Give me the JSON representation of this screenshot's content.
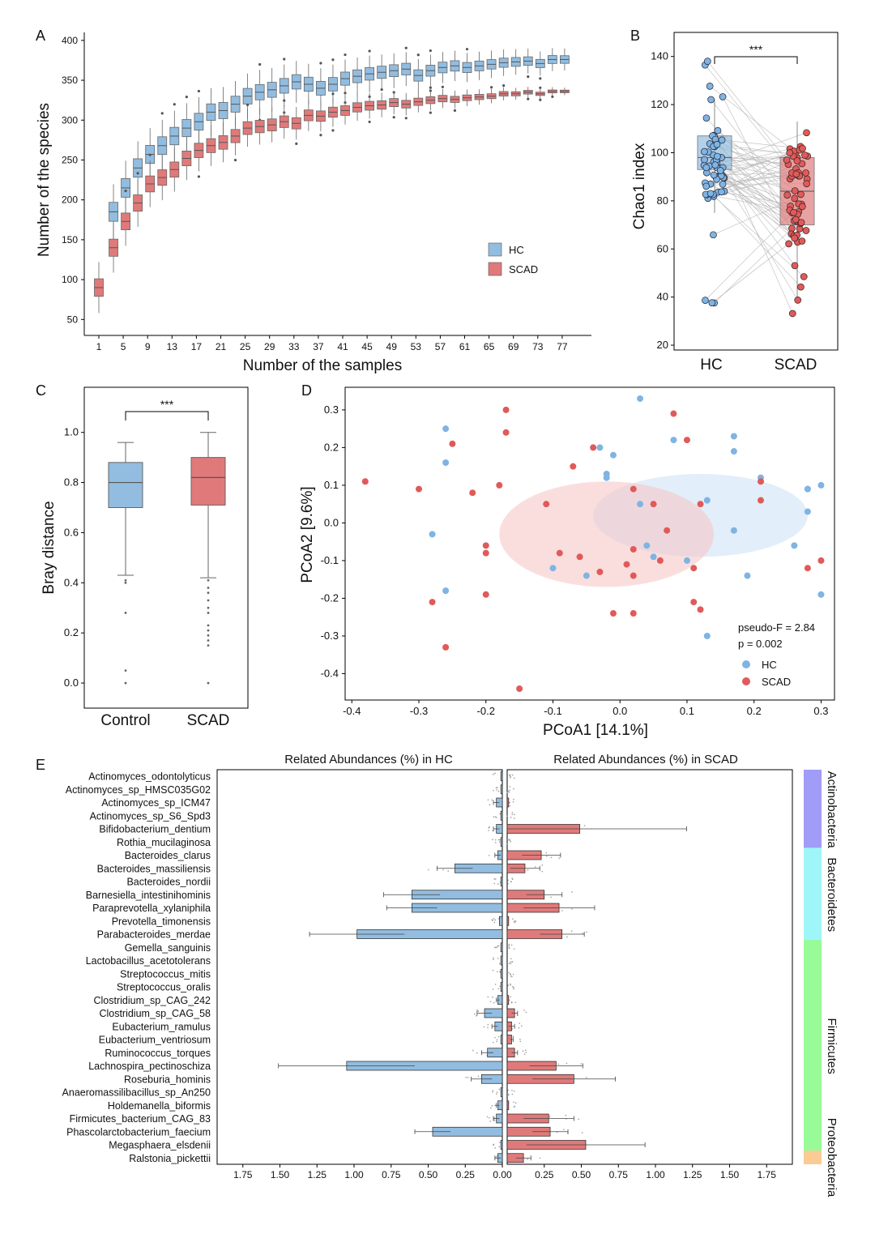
{
  "colors": {
    "hc": "#92bde0",
    "scad": "#e07a7a",
    "hc_dot": "#7fb4e3",
    "scad_dot": "#e05a5a",
    "hc_label": "#2e8fe0",
    "scad_label": "#e02a2a",
    "actino": "#a09cf7",
    "bactero": "#9ff6f9",
    "firmi": "#98fb98",
    "proteo": "#fbcb95"
  },
  "chart_data": [
    {
      "panel": "A",
      "type": "box",
      "xlabel": "Number of the samples",
      "ylabel": "Number of the species",
      "ylim": [
        30,
        410
      ],
      "yticks": [
        50,
        100,
        150,
        200,
        250,
        300,
        350,
        400
      ],
      "xticks": [
        1,
        5,
        9,
        13,
        17,
        21,
        25,
        29,
        33,
        37,
        41,
        45,
        49,
        53,
        57,
        61,
        65,
        69,
        73,
        77
      ],
      "legend": [
        "HC",
        "SCAD"
      ],
      "hc_medians": [
        null,
        185,
        215,
        240,
        257,
        268,
        280,
        290,
        298,
        310,
        312,
        320,
        330,
        335,
        338,
        343,
        348,
        345,
        340,
        345,
        352,
        355,
        358,
        360,
        362,
        364,
        356,
        362,
        366,
        368,
        366,
        368,
        370,
        372,
        373,
        374,
        371,
        376,
        376
      ],
      "scad_medians": [
        90,
        140,
        173,
        196,
        220,
        228,
        238,
        252,
        262,
        268,
        272,
        280,
        290,
        292,
        294,
        298,
        296,
        306,
        305,
        310,
        312,
        316,
        318,
        319,
        322,
        320,
        323,
        325,
        327,
        326,
        328,
        329,
        330,
        333,
        333,
        335,
        333,
        336,
        336
      ]
    },
    {
      "panel": "B",
      "type": "box",
      "title": "***",
      "ylabel": "Chao1 index",
      "categories": [
        "HC",
        "SCAD"
      ],
      "ylim": [
        18,
        150
      ],
      "yticks": [
        20,
        40,
        60,
        80,
        100,
        120,
        140
      ],
      "boxes": [
        {
          "name": "HC",
          "q1": 93,
          "median": 98,
          "q3": 107,
          "lower": 75,
          "upper": 122
        },
        {
          "name": "SCAD",
          "q1": 70,
          "median": 84,
          "q3": 98,
          "lower": 38,
          "upper": 113
        }
      ]
    },
    {
      "panel": "C",
      "type": "box",
      "title": "***",
      "ylabel": "Bray distance",
      "categories": [
        "Control",
        "SCAD"
      ],
      "ylim": [
        -0.1,
        1.18
      ],
      "yticks": [
        0.0,
        0.2,
        0.4,
        0.6,
        0.8,
        1.0
      ],
      "boxes": [
        {
          "name": "Control",
          "q1": 0.7,
          "median": 0.8,
          "q3": 0.88,
          "lower": 0.43,
          "upper": 0.96
        },
        {
          "name": "SCAD",
          "q1": 0.71,
          "median": 0.82,
          "q3": 0.9,
          "lower": 0.42,
          "upper": 1.0
        }
      ],
      "outliers_control": [
        0.41,
        0.4,
        0.28,
        0.05,
        0.0
      ],
      "outliers_scad": [
        0.41,
        0.38,
        0.36,
        0.33,
        0.3,
        0.28,
        0.23,
        0.21,
        0.19,
        0.17,
        0.15,
        0.0
      ]
    },
    {
      "panel": "D",
      "type": "scatter",
      "xlabel": "PCoA1 [14.1%]",
      "ylabel": "PCoA2 [9.6%]",
      "xlim": [
        -0.41,
        0.32
      ],
      "ylim": [
        -0.47,
        0.36
      ],
      "xticks": [
        -0.4,
        -0.3,
        -0.2,
        -0.1,
        0.0,
        0.1,
        0.2,
        0.3
      ],
      "yticks": [
        -0.4,
        -0.3,
        -0.2,
        -0.1,
        0.0,
        0.1,
        0.2,
        0.3
      ],
      "annotation": [
        "pseudo-F = 2.84",
        "p = 0.002"
      ],
      "legend": [
        "HC",
        "SCAD"
      ],
      "hc": [
        [
          0.03,
          0.33
        ],
        [
          -0.26,
          0.25
        ],
        [
          -0.26,
          0.16
        ],
        [
          0.17,
          0.23
        ],
        [
          0.17,
          0.19
        ],
        [
          -0.03,
          0.2
        ],
        [
          -0.01,
          0.18
        ],
        [
          0.08,
          0.22
        ],
        [
          -0.02,
          0.13
        ],
        [
          -0.02,
          0.12
        ],
        [
          0.21,
          0.12
        ],
        [
          0.3,
          0.1
        ],
        [
          0.28,
          0.09
        ],
        [
          0.28,
          0.09
        ],
        [
          0.13,
          0.06
        ],
        [
          0.03,
          0.05
        ],
        [
          0.28,
          0.03
        ],
        [
          -0.28,
          -0.03
        ],
        [
          0.17,
          -0.02
        ],
        [
          0.26,
          -0.06
        ],
        [
          -0.1,
          -0.12
        ],
        [
          0.05,
          -0.09
        ],
        [
          0.1,
          -0.1
        ],
        [
          0.04,
          -0.06
        ],
        [
          -0.05,
          -0.14
        ],
        [
          0.19,
          -0.14
        ],
        [
          -0.26,
          -0.18
        ],
        [
          0.3,
          -0.19
        ],
        [
          0.13,
          -0.3
        ]
      ],
      "scad": [
        [
          -0.38,
          0.11
        ],
        [
          -0.3,
          0.09
        ],
        [
          -0.22,
          0.08
        ],
        [
          -0.18,
          0.1
        ],
        [
          -0.17,
          0.3
        ],
        [
          -0.17,
          0.24
        ],
        [
          -0.25,
          0.21
        ],
        [
          -0.07,
          0.15
        ],
        [
          -0.04,
          0.2
        ],
        [
          0.08,
          0.29
        ],
        [
          0.1,
          0.22
        ],
        [
          0.21,
          0.11
        ],
        [
          0.21,
          0.06
        ],
        [
          -0.11,
          0.05
        ],
        [
          0.02,
          0.09
        ],
        [
          0.05,
          0.05
        ],
        [
          0.12,
          0.05
        ],
        [
          0.07,
          -0.02
        ],
        [
          -0.2,
          -0.06
        ],
        [
          -0.2,
          -0.08
        ],
        [
          -0.09,
          -0.08
        ],
        [
          -0.06,
          -0.09
        ],
        [
          0.02,
          -0.07
        ],
        [
          -0.03,
          -0.13
        ],
        [
          0.01,
          -0.11
        ],
        [
          0.02,
          -0.14
        ],
        [
          0.06,
          -0.1
        ],
        [
          0.11,
          -0.12
        ],
        [
          0.3,
          -0.1
        ],
        [
          0.28,
          -0.12
        ],
        [
          -0.28,
          -0.21
        ],
        [
          -0.2,
          -0.19
        ],
        [
          -0.01,
          -0.24
        ],
        [
          0.02,
          -0.24
        ],
        [
          0.11,
          -0.21
        ],
        [
          0.12,
          -0.23
        ],
        [
          -0.26,
          -0.33
        ],
        [
          -0.15,
          -0.44
        ]
      ],
      "ellipses": [
        {
          "group": "HC",
          "cx": 0.12,
          "cy": 0.02,
          "rx": 0.16,
          "ry": 0.11
        },
        {
          "group": "SCAD",
          "cx": -0.02,
          "cy": -0.03,
          "rx": 0.16,
          "ry": 0.14
        }
      ]
    },
    {
      "panel": "E",
      "type": "bar",
      "title_left": "Related Abundances (%) in HC",
      "title_right": "Related Abundances (%) in SCAD",
      "xticks_left": [
        "1.75",
        "1.50",
        "1.25",
        "1.00",
        "0.75",
        "0.50",
        "0.25",
        "0.00"
      ],
      "xticks_right": [
        "0.25",
        "0.50",
        "0.75",
        "1.00",
        "1.25",
        "1.50",
        "1.75"
      ],
      "categories": [
        "Actinomyces_odontolyticus",
        "Actinomyces_sp_HMSC035G02",
        "Actinomyces_sp_ICM47",
        "Actinomyces_sp_S6_Spd3",
        "Bifidobacterium_dentium",
        "Rothia_mucilaginosa",
        "Bacteroides_clarus",
        "Bacteroides_massiliensis",
        "Bacteroides_nordii",
        "Barnesiella_intestinihominis",
        "Paraprevotella_xylaniphila",
        "Prevotella_timonensis",
        "Parabacteroides_merdae",
        "Gemella_sanguinis",
        "Lactobacillus_acetotolerans",
        "Streptococcus_mitis",
        "Streptococcus_oralis",
        "Clostridium_sp_CAG_242",
        "Clostridium_sp_CAG_58",
        "Eubacterium_ramulus",
        "Eubacterium_ventriosum",
        "Ruminococcus_torques",
        "Lachnospira_pectinoschiza",
        "Roseburia_hominis",
        "Anaeromassilibacillus_sp_An250",
        "Holdemanella_biformis",
        "Firmicutes_bacterium_CAG_83",
        "Phascolarctobacterium_faecium",
        "Megasphaera_elsdenii",
        "Ralstonia_pickettii"
      ],
      "label_group": [
        "HC",
        "HC",
        "HC",
        "HC",
        "SCAD",
        "HC",
        "SCAD",
        "HC",
        "SCAD",
        "HC",
        "HC",
        "HC",
        "HC",
        "HC",
        "HC",
        "HC",
        "HC",
        "HC",
        "HC",
        "HC",
        "SCAD",
        "HC",
        "HC",
        "SCAD",
        "HC",
        "HC",
        "SCAD",
        "HC",
        "SCAD",
        "SCAD"
      ],
      "hc_values": [
        0.01,
        0.01,
        0.04,
        0.01,
        0.04,
        0.01,
        0.03,
        0.32,
        0.01,
        0.61,
        0.61,
        0.02,
        0.98,
        0.01,
        0.01,
        0.01,
        0.01,
        0.03,
        0.12,
        0.05,
        0.01,
        0.1,
        1.05,
        0.14,
        0.01,
        0.03,
        0.04,
        0.47,
        0.01,
        0.03
      ],
      "hc_err": [
        0.0,
        0.0,
        0.02,
        0.0,
        0.02,
        0.0,
        0.02,
        0.12,
        0.0,
        0.19,
        0.17,
        0.0,
        0.32,
        0.0,
        0.0,
        0.0,
        0.0,
        0.01,
        0.05,
        0.02,
        0.0,
        0.04,
        0.46,
        0.07,
        0.0,
        0.01,
        0.02,
        0.12,
        0.0,
        0.02
      ],
      "scad_values": [
        0.0,
        0.0,
        0.01,
        0.0,
        0.49,
        0.0,
        0.23,
        0.12,
        0.0,
        0.25,
        0.35,
        0.01,
        0.37,
        0.0,
        0.0,
        0.0,
        0.0,
        0.01,
        0.05,
        0.03,
        0.03,
        0.05,
        0.33,
        0.45,
        0.0,
        0.01,
        0.28,
        0.29,
        0.53,
        0.11
      ],
      "scad_err": [
        0.0,
        0.0,
        0.0,
        0.0,
        0.72,
        0.0,
        0.13,
        0.1,
        0.0,
        0.12,
        0.24,
        0.0,
        0.15,
        0.0,
        0.0,
        0.0,
        0.0,
        0.0,
        0.02,
        0.02,
        0.01,
        0.02,
        0.18,
        0.28,
        0.0,
        0.0,
        0.17,
        0.12,
        0.4,
        0.05
      ],
      "phyla": [
        {
          "name": "Actinobacteria",
          "from": 0,
          "to": 5,
          "color_key": "actino"
        },
        {
          "name": "Bacteroidetes",
          "from": 6,
          "to": 12,
          "color_key": "bactero"
        },
        {
          "name": "Firmicutes",
          "from": 13,
          "to": 28,
          "color_key": "firmi"
        },
        {
          "name": "Proteobacteria",
          "from": 29,
          "to": 29,
          "color_key": "proteo"
        }
      ]
    }
  ],
  "panel_labels": [
    "A",
    "B",
    "C",
    "D",
    "E"
  ]
}
